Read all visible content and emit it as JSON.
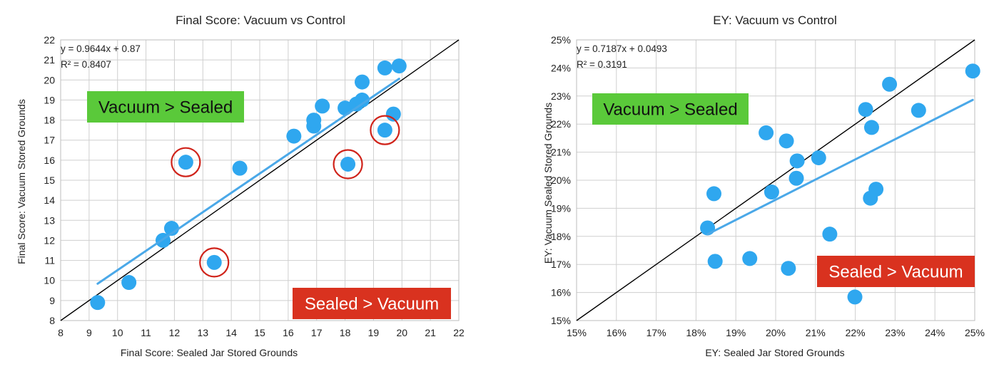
{
  "chart_data": [
    {
      "type": "scatter",
      "title": "Final Score: Vacuum vs Control",
      "xlabel": "Final Score: Sealed Jar Stored Grounds",
      "ylabel": "Final Score: Vacuum Stored Grounds",
      "xlim": [
        8,
        22
      ],
      "ylim": [
        8,
        22
      ],
      "x_ticks": [
        8,
        9,
        10,
        11,
        12,
        13,
        14,
        15,
        16,
        17,
        18,
        19,
        20,
        21,
        22
      ],
      "y_ticks": [
        8,
        9,
        10,
        11,
        12,
        13,
        14,
        15,
        16,
        17,
        18,
        19,
        20,
        21,
        22
      ],
      "grid": true,
      "point_color": "#2fa7ef",
      "trend_color": "#4aa8e8",
      "identity_color": "#000000",
      "circle_color": "#d0231a",
      "points": [
        {
          "x": 9.3,
          "y": 8.9
        },
        {
          "x": 10.4,
          "y": 9.9
        },
        {
          "x": 11.6,
          "y": 12.0
        },
        {
          "x": 11.9,
          "y": 12.6
        },
        {
          "x": 12.4,
          "y": 15.9
        },
        {
          "x": 13.4,
          "y": 10.9
        },
        {
          "x": 14.3,
          "y": 15.6
        },
        {
          "x": 16.2,
          "y": 17.2
        },
        {
          "x": 16.9,
          "y": 17.7
        },
        {
          "x": 16.9,
          "y": 18.0
        },
        {
          "x": 17.2,
          "y": 18.7
        },
        {
          "x": 18.0,
          "y": 18.6
        },
        {
          "x": 18.1,
          "y": 15.8
        },
        {
          "x": 18.4,
          "y": 18.8
        },
        {
          "x": 18.6,
          "y": 19.0
        },
        {
          "x": 18.6,
          "y": 19.9
        },
        {
          "x": 19.4,
          "y": 17.5
        },
        {
          "x": 19.4,
          "y": 20.6
        },
        {
          "x": 19.7,
          "y": 18.3
        },
        {
          "x": 19.9,
          "y": 20.7
        }
      ],
      "circled_points": [
        {
          "x": 12.4,
          "y": 15.9
        },
        {
          "x": 13.4,
          "y": 10.9
        },
        {
          "x": 18.1,
          "y": 15.8
        },
        {
          "x": 19.4,
          "y": 17.5
        }
      ],
      "trendline": {
        "slope": 0.9644,
        "intercept": 0.87,
        "x_start": 9.3,
        "x_end": 19.9
      },
      "equation": "y = 0.9644x + 0.87",
      "r_squared": "R² = 0.8407",
      "annotations": [
        {
          "text": "Vacuum > Sealed",
          "color": "#5ac93a"
        },
        {
          "text": "Sealed > Vacuum",
          "color": "#d9321f"
        }
      ]
    },
    {
      "type": "scatter",
      "title": "EY: Vacuum vs Control",
      "xlabel": "EY: Sealed Jar Stored Grounds",
      "ylabel": "EY: Vacuum Sealed  Stored Grounds",
      "xlim": [
        0.15,
        0.25
      ],
      "ylim": [
        0.15,
        0.25
      ],
      "x_ticks": [
        "15%",
        "16%",
        "17%",
        "18%",
        "19%",
        "20%",
        "21%",
        "22%",
        "23%",
        "24%",
        "25%"
      ],
      "y_ticks": [
        "15%",
        "16%",
        "17%",
        "18%",
        "19%",
        "20%",
        "21%",
        "22%",
        "23%",
        "24%",
        "25%"
      ],
      "grid": true,
      "point_color": "#2fa7ef",
      "trend_color": "#4aa8e8",
      "identity_color": "#000000",
      "points": [
        {
          "x": 0.1829,
          "y": 0.183
        },
        {
          "x": 0.1845,
          "y": 0.1952
        },
        {
          "x": 0.1848,
          "y": 0.1711
        },
        {
          "x": 0.1935,
          "y": 0.1721
        },
        {
          "x": 0.1976,
          "y": 0.2169
        },
        {
          "x": 0.199,
          "y": 0.1958
        },
        {
          "x": 0.2027,
          "y": 0.214
        },
        {
          "x": 0.2032,
          "y": 0.1686
        },
        {
          "x": 0.2052,
          "y": 0.2007
        },
        {
          "x": 0.2054,
          "y": 0.2069
        },
        {
          "x": 0.2108,
          "y": 0.208
        },
        {
          "x": 0.2136,
          "y": 0.1808
        },
        {
          "x": 0.2199,
          "y": 0.1584
        },
        {
          "x": 0.2226,
          "y": 0.2252
        },
        {
          "x": 0.2238,
          "y": 0.1936
        },
        {
          "x": 0.2241,
          "y": 0.2188
        },
        {
          "x": 0.2252,
          "y": 0.1968
        },
        {
          "x": 0.2286,
          "y": 0.2342
        },
        {
          "x": 0.2359,
          "y": 0.2249
        },
        {
          "x": 0.2495,
          "y": 0.2389
        }
      ],
      "trendline": {
        "slope": 0.7187,
        "intercept": 0.0493,
        "x_start": 0.1829,
        "x_end": 0.2495
      },
      "equation": "y = 0.7187x + 0.0493",
      "r_squared": "R² = 0.3191",
      "annotations": [
        {
          "text": "Vacuum > Sealed",
          "color": "#5ac93a"
        },
        {
          "text": "Sealed > Vacuum",
          "color": "#d9321f"
        }
      ]
    }
  ]
}
